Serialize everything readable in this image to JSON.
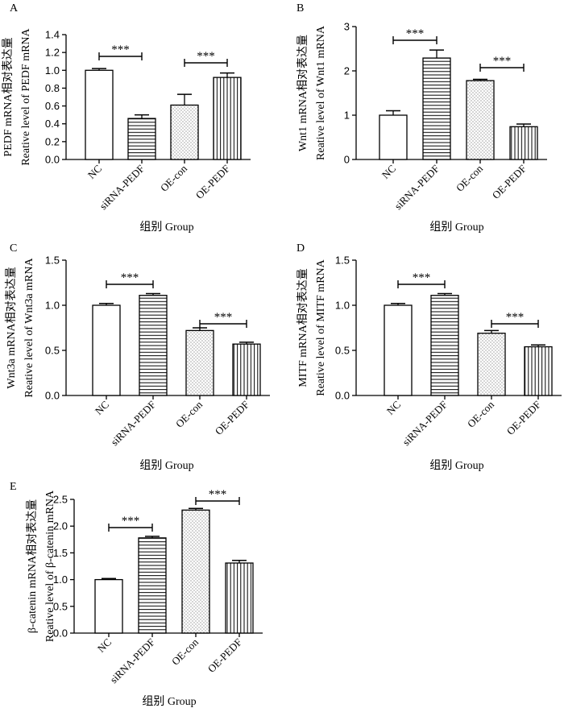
{
  "figure": {
    "categories": [
      "NC",
      "siRNA-PEDF",
      "OE-con",
      "OE-PEDF"
    ],
    "sig_label": "***",
    "xlabel": "组别 Group"
  },
  "chart_data": [
    {
      "panel": "A",
      "type": "bar",
      "categories": [
        "NC",
        "siRNA-PEDF",
        "OE-con",
        "OE-PEDF"
      ],
      "values": [
        1.0,
        0.46,
        0.61,
        0.92
      ],
      "errors": [
        0.02,
        0.04,
        0.12,
        0.05
      ],
      "ylim": [
        0,
        1.4
      ],
      "yticks": [
        "0.0",
        "0.2",
        "0.4",
        "0.6",
        "0.8",
        "1.0",
        "1.2",
        "1.4"
      ],
      "ylabel_line1": "PEDF mRNA相对表达量",
      "ylabel_line2": "Reative level of PEDF mRNA",
      "xlabel": "组别 Group",
      "significance": [
        {
          "from": 0,
          "to": 1,
          "label": "***"
        },
        {
          "from": 2,
          "to": 3,
          "label": "***"
        }
      ]
    },
    {
      "panel": "B",
      "type": "bar",
      "categories": [
        "NC",
        "siRNA-PEDF",
        "OE-con",
        "OE-PEDF"
      ],
      "values": [
        1.0,
        2.29,
        1.78,
        0.74
      ],
      "errors": [
        0.1,
        0.18,
        0.03,
        0.06
      ],
      "ylim": [
        0,
        3
      ],
      "yticks": [
        "0",
        "1",
        "2",
        "3"
      ],
      "ylabel_line1": "Wnt1 mRNA相对表达量",
      "ylabel_line2": "Reative level of Wnt1 mRNA",
      "xlabel": "组别 Group",
      "significance": [
        {
          "from": 0,
          "to": 1,
          "label": "***"
        },
        {
          "from": 2,
          "to": 3,
          "label": "***"
        }
      ]
    },
    {
      "panel": "C",
      "type": "bar",
      "categories": [
        "NC",
        "siRNA-PEDF",
        "OE-con",
        "OE-PEDF"
      ],
      "values": [
        1.0,
        1.11,
        0.72,
        0.57
      ],
      "errors": [
        0.02,
        0.02,
        0.03,
        0.02
      ],
      "ylim": [
        0,
        1.5
      ],
      "yticks": [
        "0.0",
        "0.5",
        "1.0",
        "1.5"
      ],
      "ylabel_line1": "Wnt3a mRNA相对表达量",
      "ylabel_line2": "Reative level of Wnt3a mRNA",
      "xlabel": "组别 Group",
      "significance": [
        {
          "from": 0,
          "to": 1,
          "label": "***"
        },
        {
          "from": 2,
          "to": 3,
          "label": "***"
        }
      ]
    },
    {
      "panel": "D",
      "type": "bar",
      "categories": [
        "NC",
        "siRNA-PEDF",
        "OE-con",
        "OE-PEDF"
      ],
      "values": [
        1.0,
        1.11,
        0.69,
        0.54
      ],
      "errors": [
        0.02,
        0.02,
        0.03,
        0.02
      ],
      "ylim": [
        0,
        1.5
      ],
      "yticks": [
        "0.0",
        "0.5",
        "1.0",
        "1.5"
      ],
      "ylabel_line1": "MITF mRNA相对表达量",
      "ylabel_line2": "Reative level of MITF mRNA",
      "xlabel": "组别 Group",
      "significance": [
        {
          "from": 0,
          "to": 1,
          "label": "***"
        },
        {
          "from": 2,
          "to": 3,
          "label": "***"
        }
      ]
    },
    {
      "panel": "E",
      "type": "bar",
      "categories": [
        "NC",
        "siRNA-PEDF",
        "OE-con",
        "OE-PEDF"
      ],
      "values": [
        1.0,
        1.78,
        2.3,
        1.31
      ],
      "errors": [
        0.02,
        0.03,
        0.03,
        0.05
      ],
      "ylim": [
        0,
        2.5
      ],
      "yticks": [
        "0.0",
        "0.5",
        "1.0",
        "1.5",
        "2.0",
        "2.5"
      ],
      "ylabel_line1": "β-catenin mRNA相对表达量",
      "ylabel_line2": "Reative level of β-catenin mRNA",
      "xlabel": "组别 Group",
      "significance": [
        {
          "from": 0,
          "to": 1,
          "label": "***"
        },
        {
          "from": 2,
          "to": 3,
          "label": "***"
        }
      ]
    }
  ]
}
